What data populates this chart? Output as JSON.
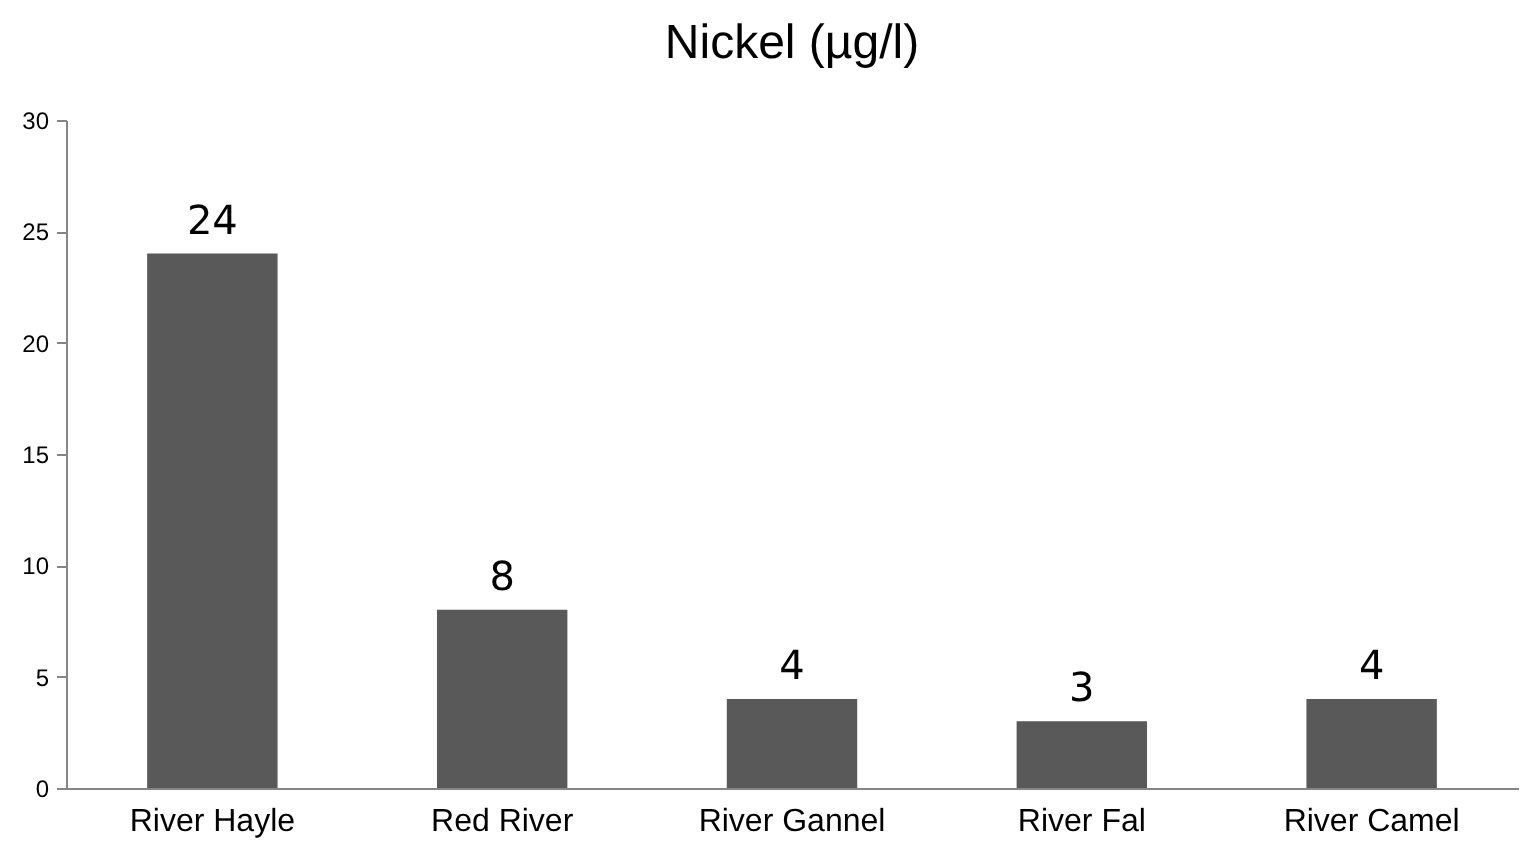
{
  "chart_data": {
    "type": "bar",
    "title": "Nickel (µg/l)",
    "categories": [
      "River Hayle",
      "Red River",
      "River Gannel",
      "River Fal",
      "River Camel"
    ],
    "values": [
      24,
      8,
      4,
      3,
      4
    ],
    "color": "#595959",
    "ylim": [
      0,
      30
    ],
    "yticks": [
      0,
      5,
      10,
      15,
      20,
      25,
      30
    ],
    "grid": false,
    "data_labels": true
  }
}
